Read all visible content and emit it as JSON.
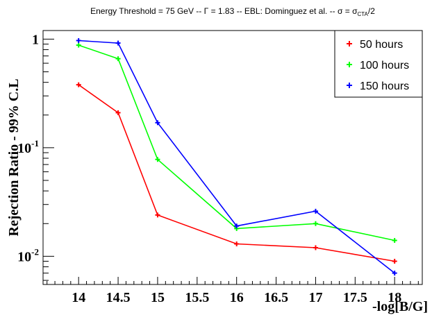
{
  "chart_data": {
    "type": "line",
    "title": {
      "prefix": "Energy Threshold = 75 GeV -- Γ = 1.83 -- EBL: Dominguez et al. -- σ = σ",
      "subscript": "CTA",
      "suffix": "/2"
    },
    "xlabel": "-log[B/G]",
    "ylabel": "Rejection Ratio - 99% C.L",
    "x": [
      14,
      14.5,
      15,
      16,
      17,
      18
    ],
    "xlim": [
      13.55,
      18.35
    ],
    "ylim": [
      0.0055,
      1.2
    ],
    "yscale": "log",
    "x_ticks": [
      "14",
      "14.5",
      "15",
      "15.5",
      "16",
      "16.5",
      "17",
      "17.5",
      "18"
    ],
    "y_ticks": [
      {
        "base": "1",
        "exp": ""
      },
      {
        "base": "10",
        "exp": "-1"
      },
      {
        "base": "10",
        "exp": "-2"
      }
    ],
    "legend_position": "top-right",
    "series": [
      {
        "name": "50 hours",
        "color": "#ff0000",
        "values": [
          0.38,
          0.21,
          0.024,
          0.013,
          0.012,
          0.009
        ]
      },
      {
        "name": "100 hours",
        "color": "#00ff00",
        "values": [
          0.88,
          0.66,
          0.078,
          0.018,
          0.02,
          0.014
        ]
      },
      {
        "name": "150 hours",
        "color": "#0000ff",
        "values": [
          0.97,
          0.92,
          0.17,
          0.019,
          0.026,
          0.007
        ]
      }
    ]
  }
}
